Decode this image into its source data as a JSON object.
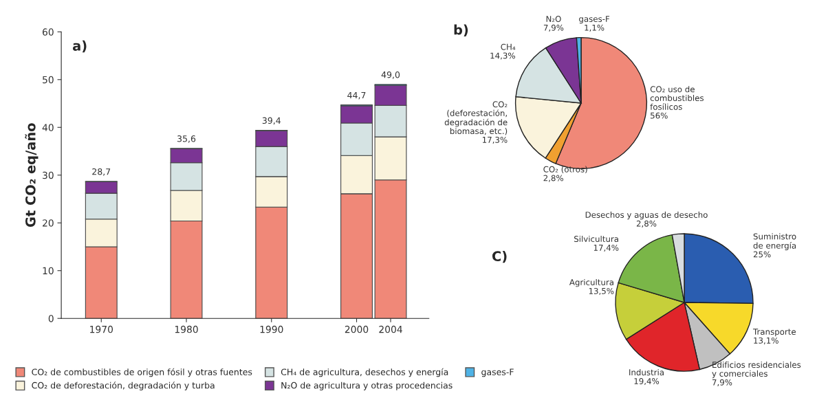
{
  "chart_data": [
    {
      "type": "bar",
      "title": "a)",
      "ylabel": "Gt CO₂ eq/año",
      "stacked": true,
      "legend": "bottom",
      "x": [
        1970,
        1980,
        1990,
        2000,
        2004
      ],
      "xlim": [
        1965.3,
        2008.5
      ],
      "xticks": [
        1970,
        1980,
        1990,
        2000,
        2004
      ],
      "ylim": [
        0,
        60
      ],
      "yticks": [
        0,
        10,
        20,
        30,
        40,
        50,
        60
      ],
      "series": [
        {
          "name": "CO₂ de combustibles de origen fósil y otras fuentes",
          "color": "#f08878",
          "values": [
            15.0,
            20.4,
            23.3,
            26.1,
            29.0
          ]
        },
        {
          "name": "CO₂ de deforestación, degradación y turba",
          "color": "#faf3dc",
          "values": [
            5.8,
            6.4,
            6.4,
            8.0,
            9.0
          ]
        },
        {
          "name": "CH₄ de agricultura, desechos y energía",
          "color": "#d5e3e3",
          "values": [
            5.4,
            5.8,
            6.3,
            6.8,
            6.6
          ]
        },
        {
          "name": "N₂O de agricultura y otras procedencias",
          "color": "#7b3594",
          "values": [
            2.4,
            2.9,
            3.3,
            3.6,
            4.2
          ]
        },
        {
          "name": "gases-F",
          "color": "#4fb3e6",
          "values": [
            0.1,
            0.1,
            0.1,
            0.2,
            0.2
          ]
        }
      ],
      "totals": [
        "28,7",
        "35,6",
        "39,4",
        "44,7",
        "49,0"
      ]
    },
    {
      "type": "pie",
      "title": "b)",
      "categories": [
        "CO₂ uso de\ncombustibles\nfosílicos",
        "CO₂ (otros)",
        "CO₂\n(deforestación,\ndegradación de\nbiomasa, etc.)",
        "CH₄",
        "N₂O",
        "gases-F"
      ],
      "values": [
        56,
        2.8,
        17.3,
        14.3,
        7.9,
        1.1
      ],
      "value_labels": [
        "56%",
        "2,8%",
        "17,3%",
        "14,3%",
        "7,9%",
        "1,1%"
      ],
      "colors": [
        "#f08878",
        "#f0a030",
        "#faf3dc",
        "#d5e3e3",
        "#7b3594",
        "#4fb3e6"
      ]
    },
    {
      "type": "pie",
      "title": "C)",
      "categories": [
        "Suministro\nde energía",
        "Transporte",
        "Edificios residenciales\ny comerciales",
        "Industria",
        "Agricultura",
        "Silvicultura",
        "Desechos y aguas de desecho"
      ],
      "values": [
        25,
        13.1,
        7.9,
        19.4,
        13.5,
        17.4,
        2.8
      ],
      "value_labels": [
        "25%",
        "13,1%",
        "7,9%",
        "19,4%",
        "13,5%",
        "17,4%",
        "2,8%"
      ],
      "colors": [
        "#2a5db0",
        "#f7d92a",
        "#c0c0c0",
        "#e0252a",
        "#c6cf3a",
        "#7ab648",
        "#d8dde0"
      ]
    }
  ]
}
